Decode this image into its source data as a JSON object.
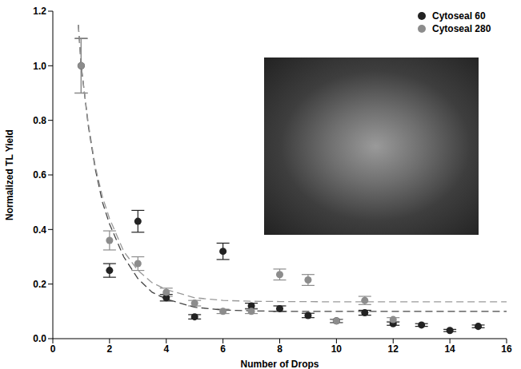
{
  "chart_data": {
    "type": "scatter",
    "x_label": "Number of Drops",
    "y_label": "Normalized TL Yield",
    "xlim": [
      0,
      16
    ],
    "xticks": [
      0,
      2,
      4,
      6,
      8,
      10,
      12,
      14,
      16
    ],
    "ylim": [
      0,
      1.2
    ],
    "yticks": [
      {
        "value": 0,
        "label": "0.0"
      },
      {
        "value": 0.2,
        "label": "0.2"
      },
      {
        "value": 0.4,
        "label": "0.4"
      },
      {
        "value": 0.6,
        "label": "0.6"
      },
      {
        "value": 0.8,
        "label": "0.8"
      },
      {
        "value": 1.0,
        "label": "1.0"
      },
      {
        "value": 1.2,
        "label": "1.2"
      }
    ],
    "legend": "top right",
    "series": [
      {
        "name": "Cytoseal 60",
        "color": "#222222",
        "marker": "circle",
        "x": [
          1,
          2,
          3,
          4,
          5,
          6,
          7,
          8,
          9,
          10,
          11,
          12,
          13,
          14,
          15
        ],
        "values": [
          1.0,
          0.25,
          0.43,
          0.15,
          0.08,
          0.32,
          0.12,
          0.11,
          0.085,
          0.065,
          0.095,
          0.055,
          0.05,
          0.03,
          0.045
        ],
        "errors": [
          0.1,
          0.025,
          0.04,
          0.012,
          0.008,
          0.03,
          0.01,
          0.01,
          0.008,
          0.006,
          0.009,
          0.006,
          0.005,
          0.004,
          0.005
        ]
      },
      {
        "name": "Cytoseal 280",
        "color": "#8c8c8c",
        "marker": "circle",
        "x": [
          1,
          2,
          3,
          4,
          5,
          6,
          7,
          8,
          9,
          10,
          11,
          12
        ],
        "values": [
          1.0,
          0.36,
          0.275,
          0.17,
          0.13,
          0.1,
          0.1,
          0.235,
          0.215,
          0.065,
          0.14,
          0.07
        ],
        "errors": [
          0.1,
          0.035,
          0.025,
          0.015,
          0.01,
          0.008,
          0.008,
          0.02,
          0.02,
          0.006,
          0.015,
          0.007
        ]
      }
    ],
    "fits": [
      {
        "color": "#444444",
        "line_style": "dashed",
        "x": [
          0.9,
          1,
          1.25,
          1.5,
          1.75,
          2,
          2.5,
          3,
          3.5,
          4,
          5,
          6,
          7,
          8,
          10,
          12,
          14,
          16
        ],
        "values": [
          1.15,
          1.0,
          0.78,
          0.62,
          0.5,
          0.42,
          0.3,
          0.22,
          0.17,
          0.145,
          0.115,
          0.105,
          0.102,
          0.1,
          0.1,
          0.1,
          0.1,
          0.1
        ]
      },
      {
        "color": "#999999",
        "line_style": "dashed",
        "x": [
          0.9,
          1,
          1.25,
          1.5,
          1.75,
          2,
          2.5,
          3,
          3.5,
          4,
          5,
          6,
          7,
          8,
          10,
          12,
          14,
          16
        ],
        "values": [
          1.15,
          1.0,
          0.79,
          0.63,
          0.52,
          0.44,
          0.32,
          0.25,
          0.205,
          0.18,
          0.15,
          0.14,
          0.137,
          0.136,
          0.135,
          0.135,
          0.135,
          0.135
        ]
      }
    ]
  }
}
